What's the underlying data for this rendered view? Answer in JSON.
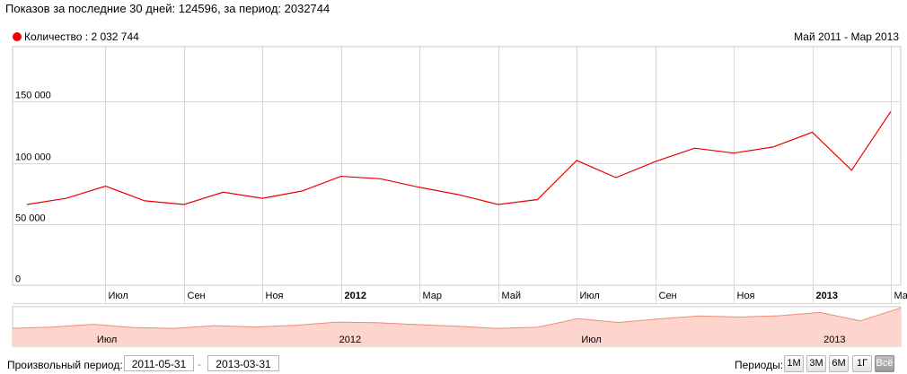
{
  "summary": "Показов за последние 30 дней: 124596, за период: 2032744",
  "chart_data": {
    "type": "line",
    "legend_position": "top-left",
    "series": [
      {
        "name": "Количество : 2 032 744",
        "color": "#ee0000",
        "values": [
          66000,
          71000,
          81000,
          69000,
          66000,
          76000,
          71000,
          77000,
          89000,
          87000,
          80000,
          74000,
          66000,
          70000,
          102000,
          88000,
          101000,
          112000,
          108000,
          113000,
          125000,
          94000,
          142000
        ]
      }
    ],
    "x": [
      "2011-05",
      "2011-06",
      "2011-07",
      "2011-08",
      "2011-09",
      "2011-10",
      "2011-11",
      "2011-12",
      "2012-01",
      "2012-02",
      "2012-03",
      "2012-04",
      "2012-05",
      "2012-06",
      "2012-07",
      "2012-08",
      "2012-09",
      "2012-10",
      "2012-11",
      "2012-12",
      "2013-01",
      "2013-02",
      "2013-03"
    ],
    "x_ticks": [
      {
        "label": "Июл",
        "month": "2011-07",
        "bold": false
      },
      {
        "label": "Сен",
        "month": "2011-09",
        "bold": false
      },
      {
        "label": "Ноя",
        "month": "2011-11",
        "bold": false
      },
      {
        "label": "2012",
        "month": "2012-01",
        "bold": true
      },
      {
        "label": "Мар",
        "month": "2012-03",
        "bold": false
      },
      {
        "label": "Май",
        "month": "2012-05",
        "bold": false
      },
      {
        "label": "Июл",
        "month": "2012-07",
        "bold": false
      },
      {
        "label": "Сен",
        "month": "2012-09",
        "bold": false
      },
      {
        "label": "Ноя",
        "month": "2012-11",
        "bold": false
      },
      {
        "label": "2013",
        "month": "2013-01",
        "bold": true
      },
      {
        "label": "Мар",
        "month": "2013-03",
        "bold": false
      }
    ],
    "y_ticks": [
      {
        "label": "0",
        "value": 0
      },
      {
        "label": "50 000",
        "value": 50000
      },
      {
        "label": "100 000",
        "value": 100000
      },
      {
        "label": "150 000",
        "value": 150000
      }
    ],
    "ylim": [
      0,
      195000
    ],
    "grid": true,
    "range_label": "Май 2011 - Мар 2013",
    "navigator": {
      "labels": [
        {
          "label": "Июл",
          "month": "2011-07"
        },
        {
          "label": "2012",
          "month": "2012-01"
        },
        {
          "label": "Июл",
          "month": "2012-07"
        },
        {
          "label": "2013",
          "month": "2013-01"
        }
      ],
      "fill_color": "#fdd5cc",
      "line_color": "#f08a7a"
    }
  },
  "controls": {
    "custom_period_label": "Произвольный период:",
    "date_from": "2011-05-31",
    "date_separator": "-",
    "date_to": "2013-03-31",
    "periods_label": "Периоды:",
    "period_buttons": [
      {
        "label": "1М",
        "active": false
      },
      {
        "label": "3М",
        "active": false
      },
      {
        "label": "6М",
        "active": false
      },
      {
        "label": "1Г",
        "active": false
      },
      {
        "label": "Всё",
        "active": true
      }
    ]
  }
}
